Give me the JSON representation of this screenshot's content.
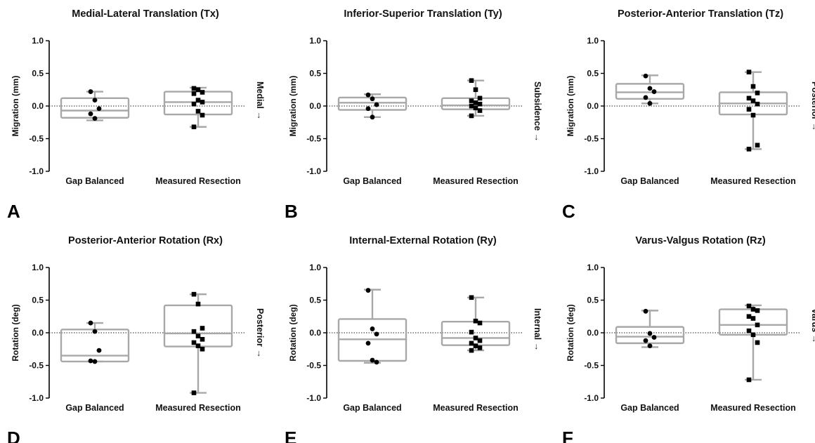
{
  "chart_data": [
    {
      "type": "box",
      "panel_label": "A",
      "title": "Medial-Lateral Translation (Tx)",
      "ylabel": "Migration (mm)",
      "direction_label": "Medial →",
      "ylim": [
        -1.0,
        1.0
      ],
      "ytick_labels": [
        "1.0",
        "0.5",
        "0.0",
        "-0.5",
        "-1.0"
      ],
      "categories": [
        "Gap Balanced",
        "Measured Resection"
      ],
      "boxes": [
        {
          "min": -0.22,
          "q1": -0.18,
          "median": -0.07,
          "q3": 0.12,
          "max": 0.22
        },
        {
          "min": -0.32,
          "q1": -0.13,
          "median": 0.06,
          "q3": 0.22,
          "max": 0.28
        }
      ],
      "points": [
        [
          0.22,
          0.09,
          -0.04,
          -0.12,
          -0.19
        ],
        [
          0.27,
          0.25,
          0.21,
          0.19,
          0.09,
          0.06,
          0.03,
          -0.08,
          -0.14,
          -0.32
        ]
      ]
    },
    {
      "type": "box",
      "panel_label": "B",
      "title": "Inferior-Superior Translation (Ty)",
      "ylabel": "Migration (mm)",
      "direction_label": "Subsidence →",
      "ylim": [
        -1.0,
        1.0
      ],
      "ytick_labels": [
        "1.0",
        "0.5",
        "0.0",
        "-0.5",
        "-1.0"
      ],
      "categories": [
        "Gap Balanced",
        "Measured Resection"
      ],
      "boxes": [
        {
          "min": -0.17,
          "q1": -0.06,
          "median": 0.05,
          "q3": 0.13,
          "max": 0.18
        },
        {
          "min": -0.15,
          "q1": -0.05,
          "median": 0.01,
          "q3": 0.12,
          "max": 0.39
        }
      ],
      "points": [
        [
          0.17,
          0.11,
          0.02,
          -0.04,
          -0.17
        ],
        [
          0.39,
          0.25,
          0.12,
          0.08,
          0.05,
          0.03,
          0.0,
          -0.03,
          -0.07,
          -0.15
        ]
      ]
    },
    {
      "type": "box",
      "panel_label": "C",
      "title": "Posterior-Anterior Translation (Tz)",
      "ylabel": "Migration (mm)",
      "direction_label": "Posterior →",
      "ylim": [
        -1.0,
        1.0
      ],
      "ytick_labels": [
        "1.0",
        "0.5",
        "0.0",
        "-0.5",
        "-1.0"
      ],
      "categories": [
        "Gap Balanced",
        "Measured Resection"
      ],
      "boxes": [
        {
          "min": 0.04,
          "q1": 0.11,
          "median": 0.21,
          "q3": 0.34,
          "max": 0.47
        },
        {
          "min": -0.66,
          "q1": -0.13,
          "median": 0.04,
          "q3": 0.21,
          "max": 0.52
        }
      ],
      "points": [
        [
          0.46,
          0.27,
          0.22,
          0.13,
          0.04
        ],
        [
          0.52,
          0.3,
          0.2,
          0.12,
          0.08,
          0.03,
          -0.05,
          -0.14,
          -0.6,
          -0.66
        ]
      ]
    },
    {
      "type": "box",
      "panel_label": "D",
      "title": "Posterior-Anterior Rotation (Rx)",
      "ylabel": "Rotation (deg)",
      "direction_label": "Posterior →",
      "ylim": [
        -1.0,
        1.0
      ],
      "ytick_labels": [
        "1.0",
        "0.5",
        "0.0",
        "-0.5",
        "-1.0"
      ],
      "categories": [
        "Gap Balanced",
        "Measured Resection"
      ],
      "boxes": [
        {
          "min": -0.44,
          "q1": -0.44,
          "median": -0.35,
          "q3": 0.05,
          "max": 0.15
        },
        {
          "min": -0.92,
          "q1": -0.21,
          "median": -0.01,
          "q3": 0.42,
          "max": 0.59
        }
      ],
      "points": [
        [
          0.15,
          0.02,
          -0.27,
          -0.43,
          -0.44
        ],
        [
          0.59,
          0.44,
          0.07,
          0.02,
          -0.05,
          -0.1,
          -0.15,
          -0.2,
          -0.25,
          -0.92
        ]
      ]
    },
    {
      "type": "box",
      "panel_label": "E",
      "title": "Internal-External Rotation (Ry)",
      "ylabel": "Rotation (deg)",
      "direction_label": "Internal →",
      "ylim": [
        -1.0,
        1.0
      ],
      "ytick_labels": [
        "1.0",
        "0.5",
        "0.0",
        "-0.5",
        "-1.0"
      ],
      "categories": [
        "Gap Balanced",
        "Measured Resection"
      ],
      "boxes": [
        {
          "min": -0.46,
          "q1": -0.43,
          "median": -0.1,
          "q3": 0.21,
          "max": 0.66
        },
        {
          "min": -0.27,
          "q1": -0.19,
          "median": -0.08,
          "q3": 0.17,
          "max": 0.54
        }
      ],
      "points": [
        [
          0.65,
          0.06,
          -0.02,
          -0.16,
          -0.42,
          -0.45
        ],
        [
          0.54,
          0.18,
          0.15,
          0.01,
          -0.08,
          -0.12,
          -0.16,
          -0.2,
          -0.23,
          -0.27
        ]
      ]
    },
    {
      "type": "box",
      "panel_label": "F",
      "title": "Varus-Valgus Rotation (Rz)",
      "ylabel": "Rotation (deg)",
      "direction_label": "Varus →",
      "ylim": [
        -1.0,
        1.0
      ],
      "ytick_labels": [
        "1.0",
        "0.5",
        "0.0",
        "-0.5",
        "-1.0"
      ],
      "categories": [
        "Gap Balanced",
        "Measured Resection"
      ],
      "boxes": [
        {
          "min": -0.22,
          "q1": -0.16,
          "median": -0.06,
          "q3": 0.09,
          "max": 0.34
        },
        {
          "min": -0.72,
          "q1": -0.03,
          "median": 0.12,
          "q3": 0.36,
          "max": 0.42
        }
      ],
      "points": [
        [
          0.33,
          -0.01,
          -0.07,
          -0.12,
          -0.2
        ],
        [
          0.41,
          0.36,
          0.34,
          0.25,
          0.22,
          0.12,
          0.03,
          -0.03,
          -0.15,
          -0.72
        ]
      ]
    }
  ]
}
